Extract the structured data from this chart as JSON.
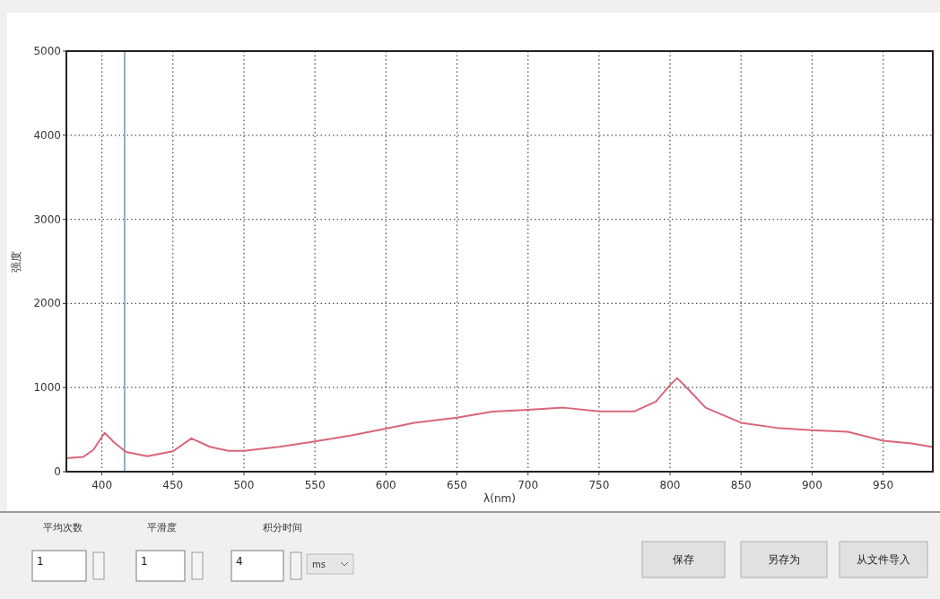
{
  "chart_data": {
    "type": "line",
    "xlabel": "λ(nm)",
    "ylabel": "强度",
    "xlim": [
      375,
      985
    ],
    "xticks": [
      400,
      450,
      500,
      550,
      600,
      650,
      700,
      750,
      800,
      850,
      900,
      950
    ],
    "ylim": [
      0,
      5000
    ],
    "yticks": [
      0,
      1000,
      2000,
      3000,
      4000,
      5000
    ],
    "grid": true,
    "line_style": "solid",
    "ref_lines": [
      {
        "axis": "x",
        "value": 416,
        "color": "#7f9daa"
      }
    ],
    "series": [
      {
        "color": "#d9667a",
        "x": [
          375,
          387,
          394,
          402,
          408.5,
          417,
          432,
          450,
          463,
          476,
          489,
          500,
          525,
          550,
          575,
          600,
          620,
          650,
          675,
          700,
          725,
          750,
          775,
          790,
          800,
          805,
          812,
          825,
          850,
          875,
          900,
          925,
          950,
          970,
          985
        ],
        "values": [
          159,
          177,
          259,
          463,
          349,
          234,
          184,
          242,
          396,
          296,
          248,
          248,
          296,
          360,
          428,
          511,
          582,
          643,
          715,
          736,
          761,
          718,
          718,
          833,
          1030,
          1113,
          994,
          761,
          582,
          521,
          492,
          474,
          367,
          336,
          292
        ]
      }
    ],
    "annotations": [
      "平均次数",
      "1",
      "平滑度",
      "1",
      "积分时间",
      "4",
      "ms",
      "保存",
      "另存为",
      "从文件导入"
    ]
  }
}
